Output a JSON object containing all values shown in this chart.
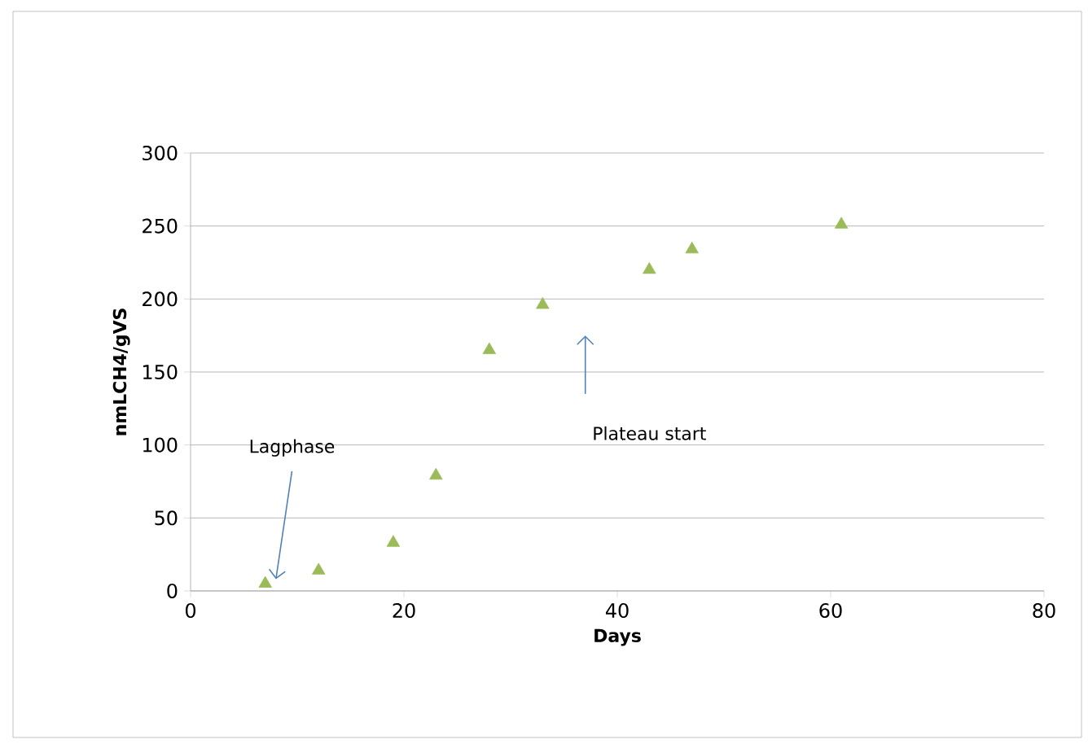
{
  "chart_data": {
    "type": "scatter",
    "xlabel": "Days",
    "ylabel": "nmLCH4/gVS",
    "x": [
      7,
      12,
      19,
      23,
      28,
      33,
      43,
      47,
      61
    ],
    "values": [
      5,
      14,
      33,
      79,
      165,
      196,
      220,
      234,
      251
    ],
    "color": "#9bbb59",
    "marker": "triangle",
    "xlim": [
      0,
      80
    ],
    "xticks": [
      0,
      20,
      40,
      60,
      80
    ],
    "ylim": [
      0,
      300
    ],
    "yticks": [
      0,
      50,
      100,
      150,
      200,
      250,
      300
    ],
    "grid": "y",
    "annotations": [
      "Lagphase",
      "Plateau start"
    ]
  }
}
